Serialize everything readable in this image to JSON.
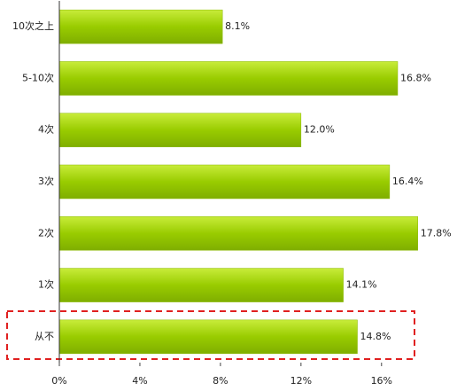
{
  "chart_data": {
    "type": "bar",
    "orientation": "horizontal",
    "categories": [
      "10次之上",
      "5-10次",
      "4次",
      "3次",
      "2次",
      "1次",
      "从不"
    ],
    "values": [
      8.1,
      16.8,
      12.0,
      16.4,
      17.8,
      14.1,
      14.8
    ],
    "value_labels": [
      "8.1%",
      "16.8%",
      "12.0%",
      "16.4%",
      "17.8%",
      "14.1%",
      "14.8%"
    ],
    "color": "#99cc00",
    "xlim": [
      0,
      19
    ],
    "xticks": [
      {
        "value": 0,
        "label": "0%"
      },
      {
        "value": 4,
        "label": "4%"
      },
      {
        "value": 8,
        "label": "8%"
      },
      {
        "value": 12,
        "label": "12%"
      },
      {
        "value": 16,
        "label": "16%"
      }
    ]
  }
}
